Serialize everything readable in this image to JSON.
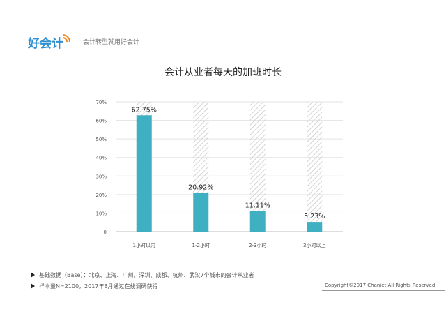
{
  "brand": {
    "logo_text": "好会计",
    "tagline": "会计转型就用好会计",
    "colors": {
      "logo_blue": "#2f8fd1",
      "logo_orange": "#f08a24"
    }
  },
  "chart_data": {
    "type": "bar",
    "title": "会计从业者每天的加班时长",
    "categories": [
      "1小时以内",
      "1-2小时",
      "2-3小时",
      "3小时以上"
    ],
    "values": [
      62.75,
      20.92,
      11.11,
      5.23
    ],
    "value_labels": [
      "62.75%",
      "20.92%",
      "11.11%",
      "5.23%"
    ],
    "y_ticks": [
      "0",
      "10%",
      "20%",
      "30%",
      "40%",
      "50%",
      "60%",
      "70%"
    ],
    "ylim": [
      0,
      70
    ],
    "grid": true,
    "bar_color": "#3fb0c2",
    "hatch_color": "#d0d0d0"
  },
  "notes": [
    "基础数据（Base）：北京、上海、广州、深圳、成都、杭州、武汉7个城市的会计从业者",
    "样本量N=2100，2017年8月通过在线调研获得"
  ],
  "copyright": "Copyright©2017 Chanjet All Rights Reserved."
}
